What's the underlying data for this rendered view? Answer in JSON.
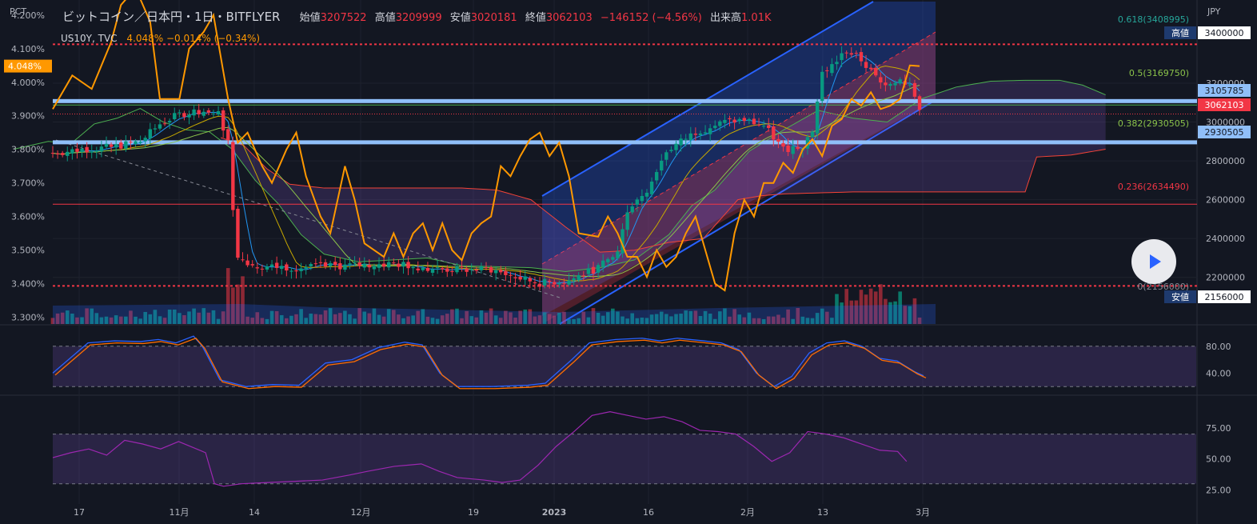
{
  "header": {
    "symbol": "ビットコイン／日本円・1日・BITFLYER",
    "open_label": "始値",
    "open": "3207522",
    "high_label": "高値",
    "high": "3209999",
    "low_label": "安値",
    "low": "3020181",
    "close_label": "終値",
    "close": "3062103",
    "change": "−146152 (−4.56%)",
    "volume_label": "出来高",
    "volume": "1.01K"
  },
  "overlay": {
    "name": "US10Y, TVC",
    "value": "4.048%  −0.014% (−0.34%)",
    "current_label": "4.048%"
  },
  "axes": {
    "left_unit": "PCT",
    "right_unit": "JPY",
    "left_ticks": [
      "4.200%",
      "4.100%",
      "4.000%",
      "3.900%",
      "3.800%",
      "3.700%",
      "3.600%",
      "3.500%",
      "3.400%",
      "3.300%"
    ],
    "right_ticks": [
      "3200000",
      "3000000",
      "2800000",
      "2600000",
      "2400000",
      "2200000"
    ],
    "stoch_ticks": [
      "80.00",
      "40.00"
    ],
    "rsi_ticks": [
      "75.00",
      "50.00",
      "25.00"
    ],
    "x_ticks": [
      "17",
      "11月",
      "14",
      "12月",
      "19",
      "2023",
      "16",
      "2月",
      "13",
      "3月"
    ]
  },
  "price_labels": {
    "high_tag": "高値",
    "high_value": "3400000",
    "low_tag": "安値",
    "low_value": "2156000",
    "level_upper": "3105785",
    "level_lower": "2930505",
    "last_price": "3062103"
  },
  "fib_labels": [
    "0.618(3408995)",
    "0.5(3169750)",
    "0.382(2930505)",
    "0.236(2634490)",
    "0(2156000)"
  ],
  "colors": {
    "background": "#131722",
    "up": "#089981",
    "down": "#f23645",
    "overlay_line": "#ff9800",
    "channel_blue": "#2962ff",
    "stoch_k": "#2962ff",
    "stoch_d": "#ff6d00",
    "rsi": "#9c27b0",
    "ichimoku_span_a": "#4caf50",
    "ichimoku_span_b": "#f44336"
  },
  "chart_data": {
    "type": "candlestick",
    "instrument": "BTC/JPY daily (bitFlyer) with US10Y overlay",
    "y_range_jpy": [
      1960000,
      3620000
    ],
    "y_range_pct": [
      3.28,
      4.24
    ],
    "fib_levels": [
      {
        "ratio": 0.618,
        "price": 3408995
      },
      {
        "ratio": 0.5,
        "price": 3169750
      },
      {
        "ratio": 0.382,
        "price": 2930505
      },
      {
        "ratio": 0.236,
        "price": 2634490
      },
      {
        "ratio": 0,
        "price": 2156000
      }
    ],
    "horizontal_levels": [
      3400000,
      3105785,
      2930505,
      2156000
    ],
    "close_anchors": [
      [
        0,
        2840000
      ],
      [
        6,
        2860000
      ],
      [
        12,
        2870000
      ],
      [
        18,
        2900000
      ],
      [
        22,
        2990000
      ],
      [
        26,
        3040000
      ],
      [
        30,
        3060000
      ],
      [
        34,
        3040000
      ],
      [
        36,
        2900000
      ],
      [
        37,
        2560000
      ],
      [
        38,
        2300000
      ],
      [
        42,
        2260000
      ],
      [
        50,
        2250000
      ],
      [
        60,
        2260000
      ],
      [
        70,
        2270000
      ],
      [
        80,
        2240000
      ],
      [
        90,
        2240000
      ],
      [
        95,
        2200000
      ],
      [
        100,
        2170000
      ],
      [
        106,
        2185000
      ],
      [
        112,
        2250000
      ],
      [
        116,
        2330000
      ],
      [
        118,
        2550000
      ],
      [
        122,
        2650000
      ],
      [
        126,
        2850000
      ],
      [
        132,
        2950000
      ],
      [
        138,
        3000000
      ],
      [
        142,
        3010000
      ],
      [
        146,
        2980000
      ],
      [
        150,
        2860000
      ],
      [
        154,
        2880000
      ],
      [
        156,
        2960000
      ],
      [
        158,
        3250000
      ],
      [
        160,
        3290000
      ],
      [
        163,
        3370000
      ],
      [
        166,
        3320000
      ],
      [
        170,
        3200000
      ],
      [
        174,
        3220000
      ],
      [
        176,
        3190000
      ],
      [
        178,
        3062103
      ]
    ],
    "us10y_anchors": [
      [
        0,
        3.92
      ],
      [
        4,
        4.02
      ],
      [
        8,
        3.98
      ],
      [
        12,
        4.12
      ],
      [
        14,
        4.23
      ],
      [
        17,
        4.28
      ],
      [
        20,
        4.18
      ],
      [
        22,
        3.95
      ],
      [
        26,
        3.95
      ],
      [
        28,
        4.1
      ],
      [
        31,
        4.15
      ],
      [
        33,
        4.2
      ],
      [
        36,
        3.95
      ],
      [
        38,
        3.82
      ],
      [
        40,
        3.85
      ],
      [
        43,
        3.75
      ],
      [
        45,
        3.7
      ],
      [
        48,
        3.8
      ],
      [
        50,
        3.85
      ],
      [
        52,
        3.72
      ],
      [
        55,
        3.6
      ],
      [
        57,
        3.55
      ],
      [
        60,
        3.75
      ],
      [
        62,
        3.65
      ],
      [
        64,
        3.52
      ],
      [
        66,
        3.5
      ],
      [
        68,
        3.48
      ],
      [
        70,
        3.55
      ],
      [
        72,
        3.48
      ],
      [
        74,
        3.55
      ],
      [
        76,
        3.58
      ],
      [
        78,
        3.5
      ],
      [
        80,
        3.58
      ],
      [
        82,
        3.5
      ],
      [
        84,
        3.47
      ],
      [
        86,
        3.55
      ],
      [
        88,
        3.58
      ],
      [
        90,
        3.6
      ],
      [
        92,
        3.75
      ],
      [
        94,
        3.72
      ],
      [
        96,
        3.78
      ],
      [
        98,
        3.83
      ],
      [
        100,
        3.85
      ],
      [
        102,
        3.78
      ],
      [
        104,
        3.82
      ],
      [
        106,
        3.72
      ],
      [
        108,
        3.55
      ],
      [
        112,
        3.54
      ],
      [
        114,
        3.6
      ],
      [
        116,
        3.55
      ],
      [
        118,
        3.48
      ],
      [
        120,
        3.48
      ],
      [
        122,
        3.42
      ],
      [
        124,
        3.5
      ],
      [
        126,
        3.45
      ],
      [
        128,
        3.48
      ],
      [
        130,
        3.55
      ],
      [
        132,
        3.6
      ],
      [
        134,
        3.5
      ],
      [
        136,
        3.4
      ],
      [
        138,
        3.38
      ],
      [
        140,
        3.55
      ],
      [
        142,
        3.65
      ],
      [
        144,
        3.6
      ],
      [
        146,
        3.7
      ],
      [
        148,
        3.7
      ],
      [
        150,
        3.76
      ],
      [
        152,
        3.73
      ],
      [
        154,
        3.8
      ],
      [
        156,
        3.83
      ],
      [
        158,
        3.78
      ],
      [
        160,
        3.87
      ],
      [
        162,
        3.89
      ],
      [
        164,
        3.95
      ],
      [
        166,
        3.93
      ],
      [
        168,
        3.97
      ],
      [
        170,
        3.92
      ],
      [
        172,
        3.93
      ],
      [
        174,
        3.95
      ],
      [
        176,
        4.05
      ],
      [
        178,
        4.048
      ]
    ],
    "stoch_anchors": [
      [
        0,
        40
      ],
      [
        8,
        85
      ],
      [
        14,
        88
      ],
      [
        20,
        87
      ],
      [
        24,
        90
      ],
      [
        28,
        85
      ],
      [
        32,
        95
      ],
      [
        34,
        80
      ],
      [
        38,
        30
      ],
      [
        44,
        20
      ],
      [
        50,
        23
      ],
      [
        56,
        22
      ],
      [
        62,
        55
      ],
      [
        68,
        60
      ],
      [
        74,
        78
      ],
      [
        80,
        86
      ],
      [
        84,
        82
      ],
      [
        88,
        40
      ],
      [
        92,
        20
      ],
      [
        100,
        20
      ],
      [
        108,
        22
      ],
      [
        112,
        25
      ],
      [
        118,
        60
      ],
      [
        122,
        85
      ],
      [
        128,
        90
      ],
      [
        134,
        92
      ],
      [
        138,
        88
      ],
      [
        142,
        92
      ],
      [
        148,
        88
      ],
      [
        152,
        85
      ],
      [
        156,
        75
      ],
      [
        160,
        40
      ],
      [
        164,
        20
      ],
      [
        168,
        35
      ],
      [
        172,
        70
      ],
      [
        176,
        85
      ],
      [
        180,
        88
      ],
      [
        184,
        80
      ],
      [
        188,
        62
      ],
      [
        192,
        58
      ],
      [
        196,
        42
      ],
      [
        198,
        36
      ]
    ],
    "rsi_anchors": [
      [
        0,
        51
      ],
      [
        4,
        55
      ],
      [
        8,
        58
      ],
      [
        12,
        53
      ],
      [
        16,
        65
      ],
      [
        20,
        62
      ],
      [
        24,
        58
      ],
      [
        28,
        64
      ],
      [
        32,
        58
      ],
      [
        34,
        55
      ],
      [
        36,
        30
      ],
      [
        38,
        28
      ],
      [
        42,
        30
      ],
      [
        48,
        31
      ],
      [
        54,
        32
      ],
      [
        60,
        33
      ],
      [
        66,
        37
      ],
      [
        70,
        40
      ],
      [
        76,
        44
      ],
      [
        82,
        46
      ],
      [
        86,
        40
      ],
      [
        90,
        35
      ],
      [
        96,
        33
      ],
      [
        100,
        31
      ],
      [
        104,
        33
      ],
      [
        108,
        45
      ],
      [
        112,
        60
      ],
      [
        116,
        72
      ],
      [
        120,
        85
      ],
      [
        124,
        88
      ],
      [
        128,
        85
      ],
      [
        132,
        82
      ],
      [
        136,
        84
      ],
      [
        140,
        80
      ],
      [
        144,
        73
      ],
      [
        148,
        72
      ],
      [
        152,
        70
      ],
      [
        156,
        60
      ],
      [
        160,
        48
      ],
      [
        164,
        55
      ],
      [
        168,
        72
      ],
      [
        172,
        70
      ],
      [
        176,
        67
      ],
      [
        180,
        62
      ],
      [
        184,
        57
      ],
      [
        188,
        56
      ],
      [
        190,
        48
      ]
    ],
    "ichimoku_span_a": [
      [
        0,
        2860000
      ],
      [
        6,
        2900000
      ],
      [
        10,
        2890000
      ],
      [
        14,
        2990000
      ],
      [
        18,
        3020000
      ],
      [
        22,
        3070000
      ],
      [
        26,
        3000000
      ],
      [
        30,
        2960000
      ],
      [
        34,
        2950000
      ],
      [
        38,
        2860000
      ],
      [
        42,
        2700000
      ],
      [
        46,
        2580000
      ],
      [
        50,
        2420000
      ],
      [
        54,
        2320000
      ],
      [
        60,
        2280000
      ],
      [
        66,
        2290000
      ],
      [
        72,
        2300000
      ],
      [
        78,
        2260000
      ],
      [
        84,
        2255000
      ],
      [
        90,
        2250000
      ],
      [
        96,
        2230000
      ],
      [
        102,
        2250000
      ],
      [
        108,
        2290000
      ],
      [
        114,
        2420000
      ],
      [
        118,
        2570000
      ],
      [
        122,
        2650000
      ],
      [
        128,
        2850000
      ],
      [
        134,
        2960000
      ],
      [
        140,
        3060000
      ],
      [
        146,
        3020000
      ],
      [
        152,
        3000000
      ],
      [
        158,
        3120000
      ],
      [
        164,
        3180000
      ],
      [
        170,
        3210000
      ],
      [
        176,
        3215000
      ],
      [
        182,
        3215000
      ],
      [
        186,
        3190000
      ],
      [
        190,
        3140000
      ]
    ],
    "ichimoku_span_b": [
      [
        36,
        2920000
      ],
      [
        40,
        2880000
      ],
      [
        44,
        2760000
      ],
      [
        48,
        2680000
      ],
      [
        54,
        2660000
      ],
      [
        60,
        2660000
      ],
      [
        66,
        2660000
      ],
      [
        72,
        2660000
      ],
      [
        78,
        2660000
      ],
      [
        84,
        2650000
      ],
      [
        90,
        2600000
      ],
      [
        96,
        2460000
      ],
      [
        102,
        2330000
      ],
      [
        108,
        2340000
      ],
      [
        114,
        2380000
      ],
      [
        120,
        2400000
      ],
      [
        126,
        2600000
      ],
      [
        130,
        2620000
      ],
      [
        134,
        2630000
      ],
      [
        140,
        2635000
      ],
      [
        146,
        2640000
      ],
      [
        152,
        2640000
      ],
      [
        158,
        2640000
      ],
      [
        164,
        2640000
      ],
      [
        170,
        2640000
      ],
      [
        176,
        2640000
      ],
      [
        178,
        2820000
      ],
      [
        184,
        2830000
      ],
      [
        190,
        2860000
      ]
    ]
  }
}
